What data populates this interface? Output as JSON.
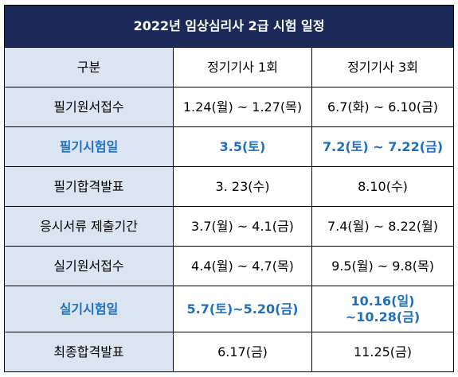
{
  "title": "2022년 임상심리사 2급 시험 일정",
  "header": {
    "category": "구분",
    "col1": "정기기사 1회",
    "col2": "정기기사 3회"
  },
  "rows": [
    {
      "label": "필기원서접수",
      "col1": "1.24(월) ~ 1.27(목)",
      "col2": "6.7(화) ~ 6.10(금)",
      "highlight": false
    },
    {
      "label": "필기시험일",
      "col1": "3.5(토)",
      "col2": "7.2(토) ~ 7.22(금)",
      "highlight": true
    },
    {
      "label": "필기합격발표",
      "col1": "3. 23(수)",
      "col2": "8.10(수)",
      "highlight": false
    },
    {
      "label": "응시서류 제출기간",
      "col1": "3.7(월) ~ 4.1(금)",
      "col2": "7.4(월) ~ 8.22(월)",
      "highlight": false
    },
    {
      "label": "실기원서접수",
      "col1": "4.4(월) ~ 4.7(목)",
      "col2": "9.5(월) ~ 9.8(목)",
      "highlight": false
    },
    {
      "label": "실기시험일",
      "col1": "5.7(토)~5.20(금)",
      "col2_line1": "10.16(일)",
      "col2_line2": "~10.28(금)",
      "highlight": true
    },
    {
      "label": "최종합격발표",
      "col1": "6.17(금)",
      "col2": "11.25(금)",
      "highlight": false
    }
  ],
  "colors": {
    "title_bg": "#1c2a5a",
    "label_bg": "#dbe5f1",
    "highlight_text": "#1f6fbf"
  }
}
